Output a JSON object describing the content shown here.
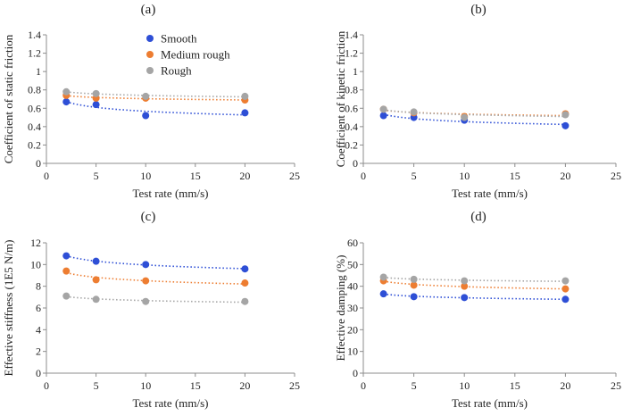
{
  "legend": [
    {
      "name": "Smooth",
      "color": "#2e4fd6"
    },
    {
      "name": "Medium rough",
      "color": "#ed7d31"
    },
    {
      "name": "Rough",
      "color": "#a5a5a5"
    }
  ],
  "chart_data": [
    {
      "type": "scatter",
      "panel_label": "(a)",
      "xlabel": "Test rate (mm/s)",
      "ylabel": "Coefficient of static friction",
      "xlim": [
        0,
        25
      ],
      "ylim": [
        0,
        1.4
      ],
      "xticks": [
        0,
        5,
        10,
        15,
        20,
        25
      ],
      "yticks": [
        0,
        0.2,
        0.4,
        0.6,
        0.8,
        1,
        1.2,
        1.4
      ],
      "xticklabels": [
        "0",
        "5",
        "10",
        "15",
        "20",
        "25"
      ],
      "yticklabels": [
        "0",
        "0.2",
        "0.4",
        "0.6",
        "0.8",
        "1",
        "1.2",
        "1.4"
      ],
      "trendline": "power",
      "series": [
        {
          "name": "Smooth",
          "x": [
            2,
            5,
            10,
            20
          ],
          "y": [
            0.67,
            0.64,
            0.52,
            0.55
          ]
        },
        {
          "name": "Medium rough",
          "x": [
            2,
            5,
            10,
            20
          ],
          "y": [
            0.74,
            0.71,
            0.71,
            0.69
          ]
        },
        {
          "name": "Rough",
          "x": [
            2,
            5,
            10,
            20
          ],
          "y": [
            0.78,
            0.76,
            0.73,
            0.73
          ]
        }
      ]
    },
    {
      "type": "scatter",
      "panel_label": "(b)",
      "xlabel": "Test rate (mm/s)",
      "ylabel": "Coefficient of kinetic friction",
      "xlim": [
        0,
        25
      ],
      "ylim": [
        0,
        1.4
      ],
      "xticks": [
        0,
        5,
        10,
        15,
        20,
        25
      ],
      "yticks": [
        0,
        0.2,
        0.4,
        0.6,
        0.8,
        1,
        1.2,
        1.4
      ],
      "xticklabels": [
        "0",
        "5",
        "10",
        "15",
        "20",
        "25"
      ],
      "yticklabels": [
        "0",
        "0.2",
        "0.4",
        "0.6",
        "0.8",
        "1",
        "1.2",
        "1.4"
      ],
      "trendline": "power",
      "series": [
        {
          "name": "Smooth",
          "x": [
            2,
            5,
            10,
            20
          ],
          "y": [
            0.52,
            0.5,
            0.47,
            0.41
          ]
        },
        {
          "name": "Medium rough",
          "x": [
            2,
            5,
            10,
            20
          ],
          "y": [
            0.59,
            0.55,
            0.51,
            0.54
          ]
        },
        {
          "name": "Rough",
          "x": [
            2,
            5,
            10,
            20
          ],
          "y": [
            0.59,
            0.56,
            0.5,
            0.53
          ]
        }
      ]
    },
    {
      "type": "scatter",
      "panel_label": "(c)",
      "xlabel": "Test rate (mm/s)",
      "ylabel": "Effective stiffness (1E5 N/m)",
      "xlim": [
        0,
        25
      ],
      "ylim": [
        0,
        12
      ],
      "xticks": [
        0,
        5,
        10,
        15,
        20,
        25
      ],
      "yticks": [
        0,
        2,
        4,
        6,
        8,
        10,
        12
      ],
      "xticklabels": [
        "0",
        "5",
        "10",
        "15",
        "20",
        "25"
      ],
      "yticklabels": [
        "0",
        "2",
        "4",
        "6",
        "8",
        "10",
        "12"
      ],
      "trendline": "power",
      "series": [
        {
          "name": "Smooth",
          "x": [
            2,
            5,
            10,
            20
          ],
          "y": [
            10.8,
            10.3,
            10.0,
            9.6
          ]
        },
        {
          "name": "Medium rough",
          "x": [
            2,
            5,
            10,
            20
          ],
          "y": [
            9.4,
            8.6,
            8.5,
            8.3
          ]
        },
        {
          "name": "Rough",
          "x": [
            2,
            5,
            10,
            20
          ],
          "y": [
            7.1,
            6.8,
            6.6,
            6.6
          ]
        }
      ]
    },
    {
      "type": "scatter",
      "panel_label": "(d)",
      "xlabel": "Test rate (mm/s)",
      "ylabel": "Effective damping (%)",
      "xlim": [
        0,
        25
      ],
      "ylim": [
        0,
        60
      ],
      "xticks": [
        0,
        5,
        10,
        15,
        20,
        25
      ],
      "yticks": [
        0,
        10,
        20,
        30,
        40,
        50,
        60
      ],
      "xticklabels": [
        "0",
        "5",
        "10",
        "15",
        "20",
        "25"
      ],
      "yticklabels": [
        "0",
        "10",
        "20",
        "30",
        "40",
        "50",
        "60"
      ],
      "trendline": "power",
      "series": [
        {
          "name": "Smooth",
          "x": [
            2,
            5,
            10,
            20
          ],
          "y": [
            36.5,
            35.2,
            34.8,
            34.0
          ]
        },
        {
          "name": "Medium rough",
          "x": [
            2,
            5,
            10,
            20
          ],
          "y": [
            42.5,
            40.5,
            40.0,
            38.8
          ]
        },
        {
          "name": "Rough",
          "x": [
            2,
            5,
            10,
            20
          ],
          "y": [
            44.2,
            43.2,
            42.5,
            42.5
          ]
        }
      ]
    }
  ]
}
